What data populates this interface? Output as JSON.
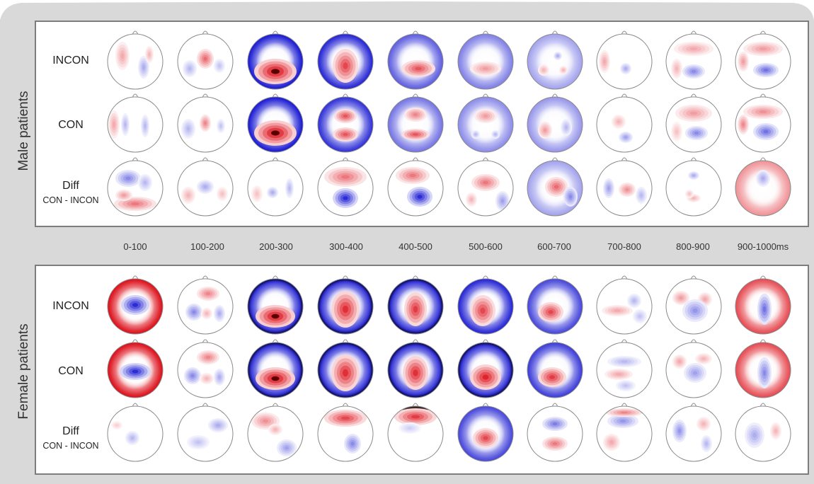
{
  "panels": {
    "male": {
      "label": "Male patients",
      "rows": {
        "incon": "INCON",
        "con": "CON",
        "diff": "Diff",
        "diff_sub": "CON - INCON"
      }
    },
    "female": {
      "label": "Female patients",
      "rows": {
        "incon": "INCON",
        "con": "CON",
        "diff": "Diff",
        "diff_sub": "CON - INCON"
      }
    }
  },
  "time_windows": [
    "0-100",
    "100-200",
    "200-300",
    "300-400",
    "400-500",
    "500-600",
    "600-700",
    "700-800",
    "800-900",
    "900-1000ms"
  ],
  "colors": {
    "positive": "#e8141e",
    "negative": "#1a1ad2",
    "deep_positive": "#5a0000",
    "deep_negative": "#000040",
    "outline": "#8a8a8a",
    "background": "#d9d9d9"
  }
}
